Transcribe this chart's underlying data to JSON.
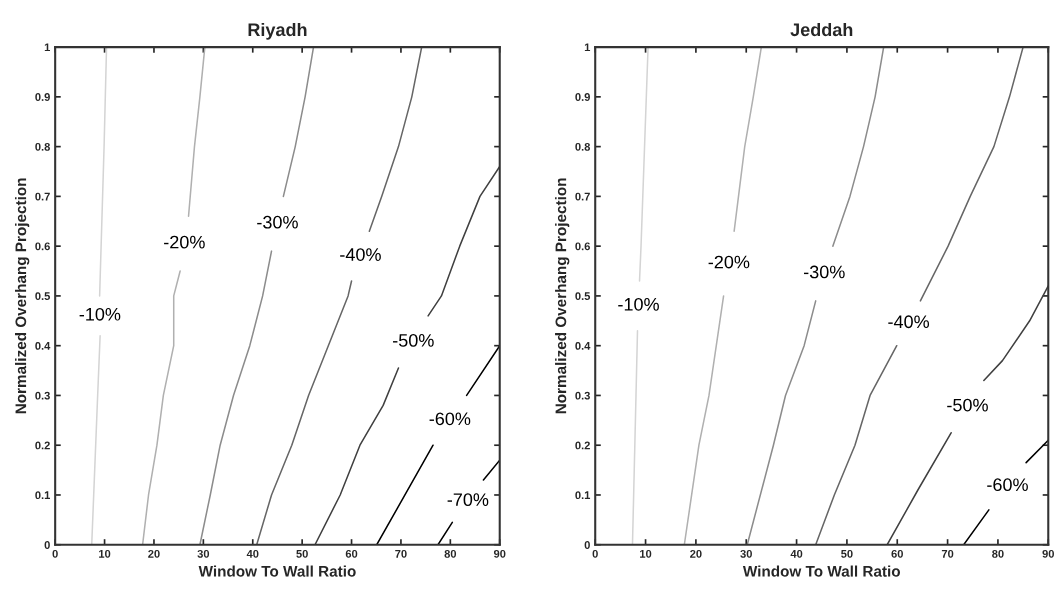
{
  "chart_data": [
    {
      "type": "line",
      "title": "Riyadh",
      "xlabel": "Window To Wall Ratio",
      "ylabel": "Normalized Overhang Projection",
      "xlim": [
        0,
        90
      ],
      "ylim": [
        0,
        1
      ],
      "xticks": [
        0,
        10,
        20,
        30,
        40,
        50,
        60,
        70,
        80,
        90
      ],
      "yticks": [
        0,
        0.1,
        0.2,
        0.3,
        0.4,
        0.5,
        0.6,
        0.7,
        0.8,
        0.9,
        1
      ],
      "series": [
        {
          "name": "-10%",
          "color": "#d4d4d4",
          "x": [
            10.4,
            9.9,
            9.3,
            9.0
          ],
          "values": [
            1,
            0.8,
            0.6,
            0.5
          ]
        },
        {
          "color": "#d4d4d4",
          "x": [
            9.1,
            8.6,
            8.0,
            7.4
          ],
          "values": [
            0.42,
            0.3,
            0.15,
            0
          ]
        },
        {
          "name": "-20%",
          "color": "#b0b0b0",
          "x": [
            30.3,
            29.3,
            28.2,
            27.0
          ],
          "values": [
            1,
            0.9,
            0.8,
            0.66
          ]
        },
        {
          "color": "#b0b0b0",
          "x": [
            25.3,
            24.0,
            24.0,
            21.9,
            20.6,
            18.9,
            17.7
          ],
          "values": [
            0.55,
            0.5,
            0.4,
            0.3,
            0.2,
            0.1,
            0
          ]
        },
        {
          "name": "-30%",
          "color": "#8c8c8c",
          "x": [
            52.3,
            50.6,
            48.6,
            46.2
          ],
          "values": [
            1,
            0.9,
            0.8,
            0.7
          ]
        },
        {
          "color": "#8c8c8c",
          "x": [
            43.8,
            42.0,
            39.4,
            36.1,
            33.4,
            31.4,
            29.3
          ],
          "values": [
            0.59,
            0.5,
            0.4,
            0.3,
            0.2,
            0.1,
            0
          ]
        },
        {
          "name": "-40%",
          "color": "#666666",
          "x": [
            74.2,
            72.2,
            69.5,
            66.1,
            63.6
          ],
          "values": [
            1,
            0.9,
            0.8,
            0.7,
            0.63
          ]
        },
        {
          "color": "#666666",
          "x": [
            60.0,
            59.3,
            55.3,
            51.3,
            47.9,
            43.8,
            40.8
          ],
          "values": [
            0.53,
            0.5,
            0.4,
            0.3,
            0.2,
            0.1,
            0
          ]
        },
        {
          "name": "-50%",
          "color": "#404040",
          "x": [
            90,
            86.0,
            81.9,
            78.2,
            75.5
          ],
          "values": [
            0.76,
            0.7,
            0.6,
            0.5,
            0.46
          ]
        },
        {
          "color": "#404040",
          "x": [
            69.5,
            66.4,
            61.7,
            57.7,
            52.6
          ],
          "values": [
            0.355,
            0.28,
            0.2,
            0.1,
            0
          ]
        },
        {
          "name": "-60%",
          "color": "#000000",
          "x": [
            90,
            83.3
          ],
          "values": [
            0.4,
            0.3
          ]
        },
        {
          "color": "#000000",
          "x": [
            76.5,
            65.1
          ],
          "values": [
            0.2,
            0
          ]
        },
        {
          "name": "-70%",
          "color": "#000000",
          "x": [
            90,
            86.7
          ],
          "values": [
            0.17,
            0.13
          ]
        },
        {
          "color": "#000000",
          "x": [
            80.4,
            77.5
          ],
          "values": [
            0.045,
            0
          ]
        }
      ]
    },
    {
      "type": "line",
      "title": "Jeddah",
      "xlabel": "Window To Wall Ratio",
      "ylabel": "Normalized Overhang Projection",
      "xlim": [
        0,
        90
      ],
      "ylim": [
        0,
        1
      ],
      "xticks": [
        0,
        10,
        20,
        30,
        40,
        50,
        60,
        70,
        80,
        90
      ],
      "yticks": [
        0,
        0.1,
        0.2,
        0.3,
        0.4,
        0.5,
        0.6,
        0.7,
        0.8,
        0.9,
        1
      ],
      "series": [
        {
          "name": "-10%",
          "color": "#d4d4d4",
          "x": [
            10.5,
            9.8,
            9.1,
            8.8
          ],
          "values": [
            1,
            0.8,
            0.6,
            0.53
          ]
        },
        {
          "color": "#d4d4d4",
          "x": [
            8.4,
            8.1,
            7.4
          ],
          "values": [
            0.43,
            0.3,
            0
          ]
        },
        {
          "name": "-20%",
          "color": "#b0b0b0",
          "x": [
            33.0,
            31.4,
            29.7,
            27.6
          ],
          "values": [
            1,
            0.9,
            0.8,
            0.63
          ]
        },
        {
          "color": "#b0b0b0",
          "x": [
            25.5,
            22.6,
            20.6,
            17.7
          ],
          "values": [
            0.5,
            0.3,
            0.2,
            0
          ]
        },
        {
          "name": "-30%",
          "color": "#8c8c8c",
          "x": [
            57.3,
            55.6,
            53.3,
            50.6,
            47.2
          ],
          "values": [
            1,
            0.9,
            0.8,
            0.7,
            0.6
          ]
        },
        {
          "color": "#8c8c8c",
          "x": [
            43.8,
            41.5,
            37.8,
            35.4,
            30.2
          ],
          "values": [
            0.49,
            0.4,
            0.3,
            0.2,
            0
          ]
        },
        {
          "name": "-40%",
          "color": "#666666",
          "x": [
            85.0,
            82.3,
            79.2,
            74.5,
            70.1,
            65.1,
            64.6
          ],
          "values": [
            1,
            0.9,
            0.8,
            0.7,
            0.6,
            0.5,
            0.49
          ]
        },
        {
          "color": "#666666",
          "x": [
            59.9,
            54.6,
            51.6,
            47.5,
            43.8
          ],
          "values": [
            0.4,
            0.3,
            0.2,
            0.1,
            0
          ]
        },
        {
          "name": "-50%",
          "color": "#404040",
          "x": [
            90,
            86.3,
            80.9,
            77.2
          ],
          "values": [
            0.52,
            0.45,
            0.37,
            0.33
          ]
        },
        {
          "color": "#404040",
          "x": [
            70.7,
            64.1,
            58.0
          ],
          "values": [
            0.225,
            0.11,
            0
          ]
        },
        {
          "name": "-60%",
          "color": "#000000",
          "x": [
            90,
            85.6
          ],
          "values": [
            0.21,
            0.165
          ]
        },
        {
          "color": "#000000",
          "x": [
            78.2,
            73.2
          ],
          "values": [
            0.07,
            0
          ]
        }
      ]
    }
  ]
}
